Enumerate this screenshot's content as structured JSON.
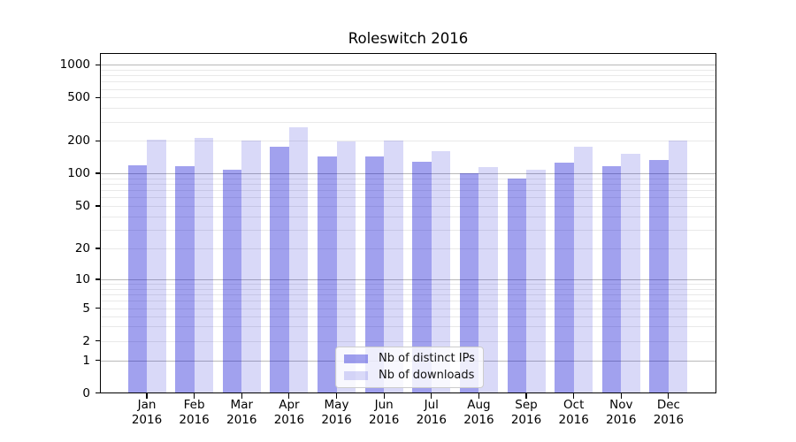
{
  "figure": {
    "title": "Roleswitch 2016",
    "background": "#ffffff"
  },
  "chart_data": {
    "type": "bar",
    "title": "Roleswitch 2016",
    "categories": [
      "Jan",
      "Feb",
      "Mar",
      "Apr",
      "May",
      "Jun",
      "Jul",
      "Aug",
      "Sep",
      "Oct",
      "Nov",
      "Dec"
    ],
    "category_year": "2016",
    "series": [
      {
        "name": "Nb of distinct IPs",
        "color": "#a1a1ee",
        "fill": "rgba(0,0,208,0.37)",
        "values": [
          119,
          116,
          107,
          177,
          144,
          142,
          127,
          100,
          89,
          125,
          117,
          134
        ]
      },
      {
        "name": "Nb of downloads",
        "color": "#d9d9f8",
        "fill": "rgba(0,0,208,0.15)",
        "values": [
          206,
          211,
          200,
          266,
          198,
          200,
          161,
          114,
          108,
          177,
          151,
          200
        ]
      }
    ],
    "yscale": "asinh-log",
    "ylim": [
      0,
      1300
    ],
    "yticks": [
      1000,
      500,
      200,
      100,
      50,
      20,
      10,
      5,
      2,
      1,
      0
    ],
    "grid": "both",
    "legend": {
      "position": "lower center",
      "entries": [
        "Nb of distinct IPs",
        "Nb of downloads"
      ]
    }
  }
}
